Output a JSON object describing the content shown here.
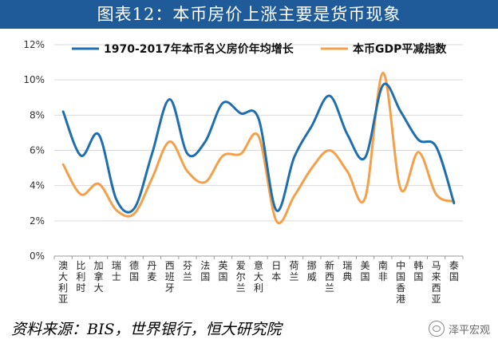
{
  "title": "图表12：本币房价上涨主要是货币现象",
  "source": "资料来源：BIS，世界银行，恒大研究院",
  "watermark": "泽平宏观",
  "chart_data": {
    "type": "line",
    "title": "图表12：本币房价上涨主要是货币现象",
    "ylim": [
      0,
      12
    ],
    "yticks": [
      "0%",
      "2%",
      "4%",
      "6%",
      "8%",
      "10%",
      "12%"
    ],
    "categories": [
      "澳大利亚",
      "比利时",
      "加拿大",
      "瑞士",
      "德国",
      "丹麦",
      "西班牙",
      "芬兰",
      "法国",
      "英国",
      "爱尔兰",
      "意大利",
      "日本",
      "荷兰",
      "挪威",
      "新西兰",
      "瑞典",
      "美国",
      "南非",
      "中国香港",
      "韩国",
      "马来西亚",
      "泰国"
    ],
    "series": [
      {
        "name": "1970-2017年本币名义房价年均增长",
        "color": "#1f6fb0",
        "values": [
          8.2,
          5.7,
          6.9,
          3.2,
          2.7,
          5.8,
          8.9,
          5.8,
          6.5,
          8.7,
          8.1,
          7.8,
          2.6,
          5.6,
          7.4,
          9.1,
          6.9,
          5.6,
          9.7,
          8.2,
          6.6,
          6.2,
          3.0
        ]
      },
      {
        "name": "本币GDP平减指数",
        "color": "#f4a04a",
        "values": [
          5.2,
          3.5,
          4.1,
          2.6,
          2.4,
          4.4,
          6.5,
          4.8,
          4.2,
          5.7,
          5.8,
          6.8,
          2.0,
          3.4,
          5.0,
          6.0,
          4.8,
          3.3,
          10.4,
          3.8,
          5.9,
          3.5,
          3.1
        ]
      }
    ],
    "legend_position": "top"
  }
}
